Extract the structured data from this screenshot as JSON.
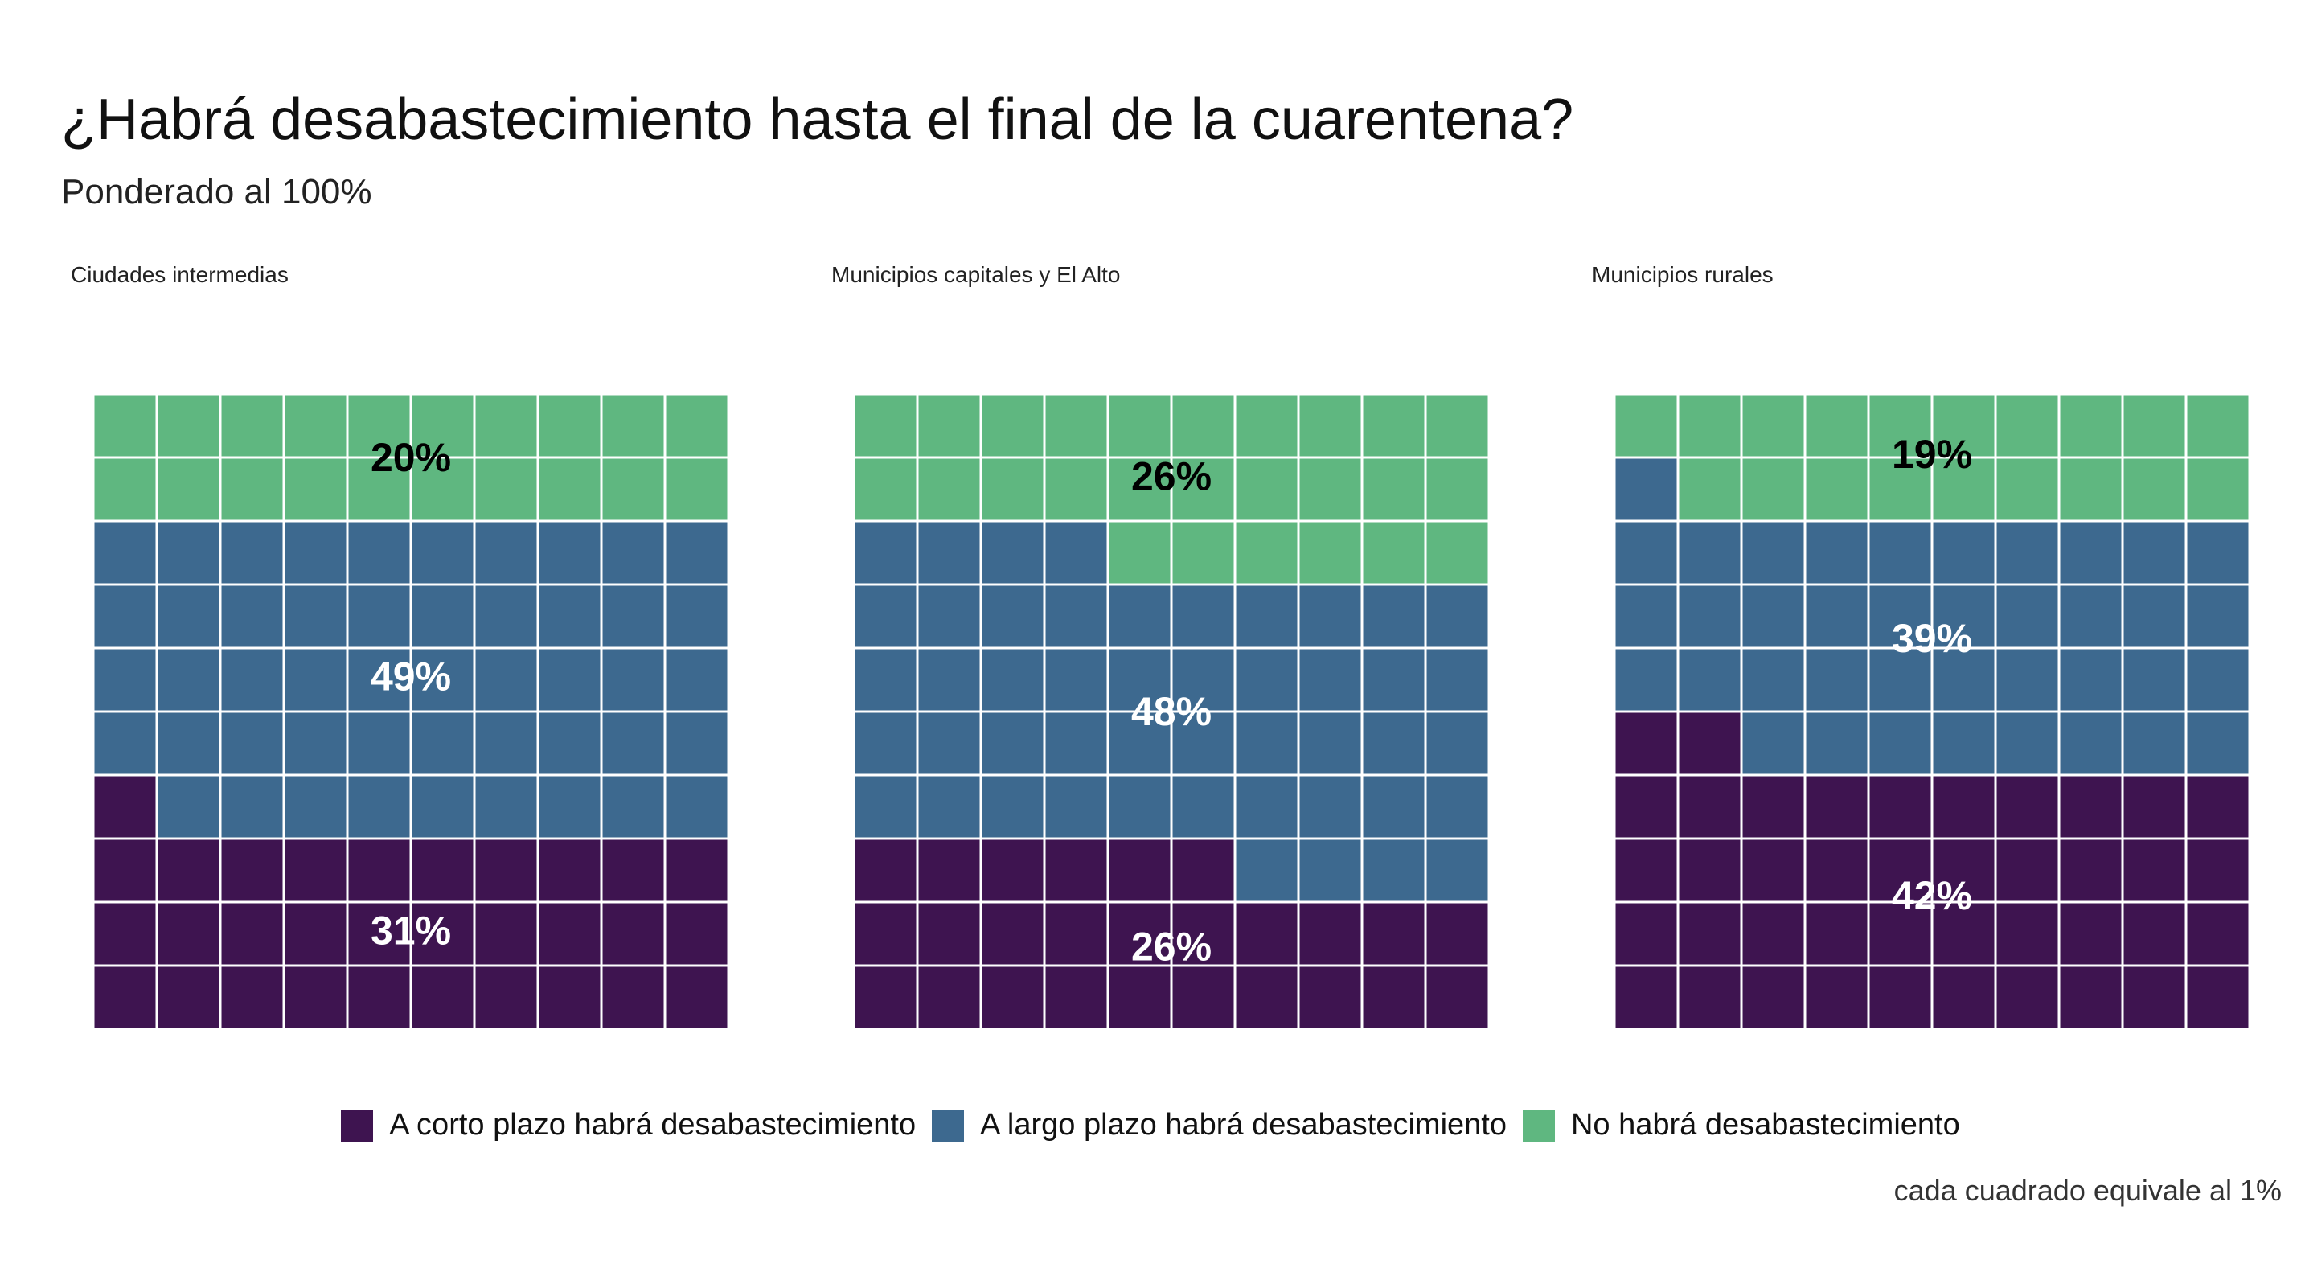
{
  "title": "¿Habrá desabastecimiento hasta el final de la cuarentena?",
  "subtitle": "Ponderado al 100%",
  "caption": "cada cuadrado equivale al 1%",
  "colors": {
    "corto": "#3e1450",
    "largo": "#3d698f",
    "no": "#5fb780",
    "grid": "#ffffff"
  },
  "chart_data": {
    "type": "waffle",
    "unit": "cada cuadrado equivale al 1%",
    "series": [
      {
        "name": "A corto plazo habrá desabastecimiento",
        "color": "#3e1450"
      },
      {
        "name": "A largo plazo habrá desabastecimiento",
        "color": "#3d698f"
      },
      {
        "name": "No habrá desabastecimiento",
        "color": "#5fb780"
      }
    ],
    "panels": [
      {
        "title": "Ciudades intermedias",
        "values": [
          31,
          49,
          20
        ],
        "labels": [
          "31%",
          "49%",
          "20%"
        ]
      },
      {
        "title": "Municipios capitales y El Alto",
        "values": [
          26,
          48,
          26
        ],
        "labels": [
          "26%",
          "48%",
          "26%"
        ]
      },
      {
        "title": "Municipios rurales",
        "values": [
          42,
          39,
          19
        ],
        "labels": [
          "42%",
          "39%",
          "19%"
        ]
      }
    ],
    "legend_position": "bottom"
  }
}
